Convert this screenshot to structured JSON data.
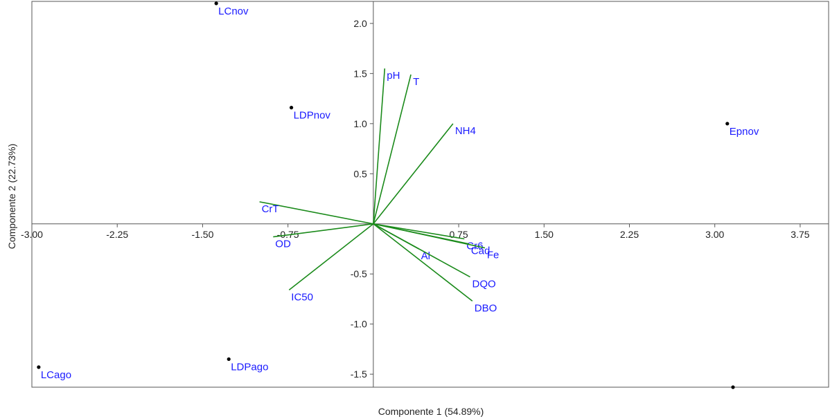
{
  "chart_data": {
    "type": "scatter",
    "subtype": "pca-biplot",
    "xlabel": "Componente 1 (54.89%)",
    "ylabel": "Componente 2 (22.73%)",
    "xlim": [
      -3.0,
      4.0
    ],
    "ylim": [
      -1.63,
      2.22
    ],
    "grid": false,
    "x_ticks": [
      {
        "value": -3.0,
        "label": "-3.00"
      },
      {
        "value": -2.25,
        "label": "-2.25"
      },
      {
        "value": -1.5,
        "label": "-1.50"
      },
      {
        "value": -0.75,
        "label": "-0.75"
      },
      {
        "value": 0.75,
        "label": "0.75"
      },
      {
        "value": 1.5,
        "label": "1.50"
      },
      {
        "value": 2.25,
        "label": "2.25"
      },
      {
        "value": 3.0,
        "label": "3.00"
      },
      {
        "value": 3.75,
        "label": "3.75"
      }
    ],
    "y_ticks": [
      {
        "value": 2.0,
        "label": "2.0"
      },
      {
        "value": 1.5,
        "label": "1.5"
      },
      {
        "value": 1.0,
        "label": "1.0"
      },
      {
        "value": 0.5,
        "label": "0.5"
      },
      {
        "value": -0.5,
        "label": "-0.5"
      },
      {
        "value": -1.0,
        "label": "-1.0"
      },
      {
        "value": -1.5,
        "label": "-1.5"
      }
    ],
    "point_color": "#000000",
    "label_color": "#1a1aff",
    "loading_color": "#1a8a1a",
    "points": [
      {
        "label": "LCnov",
        "x": -1.38,
        "y": 2.2
      },
      {
        "label": "LDPnov",
        "x": -0.72,
        "y": 1.16
      },
      {
        "label": "Epnov",
        "x": 3.11,
        "y": 1.0
      },
      {
        "label": "LCago",
        "x": -2.94,
        "y": -1.43
      },
      {
        "label": "LDPago",
        "x": -1.27,
        "y": -1.35
      },
      {
        "label": "",
        "x": 3.16,
        "y": -1.63
      }
    ],
    "loadings": [
      {
        "name": "pH",
        "x": 0.1,
        "y": 1.55
      },
      {
        "name": "T",
        "x": 0.33,
        "y": 1.49
      },
      {
        "name": "NH4",
        "x": 0.7,
        "y": 1.0
      },
      {
        "name": "CrT",
        "x": -1.0,
        "y": 0.22
      },
      {
        "name": "OD",
        "x": -0.88,
        "y": -0.13
      },
      {
        "name": "IC50",
        "x": -0.74,
        "y": -0.66
      },
      {
        "name": "Cr6",
        "x": 0.8,
        "y": -0.15
      },
      {
        "name": "Cad",
        "x": 0.84,
        "y": -0.2
      },
      {
        "name": "Fe",
        "x": 0.98,
        "y": -0.24
      },
      {
        "name": "Al",
        "x": 0.4,
        "y": -0.25
      },
      {
        "name": "DQO",
        "x": 0.85,
        "y": -0.53
      },
      {
        "name": "DBO",
        "x": 0.87,
        "y": -0.77
      }
    ]
  }
}
